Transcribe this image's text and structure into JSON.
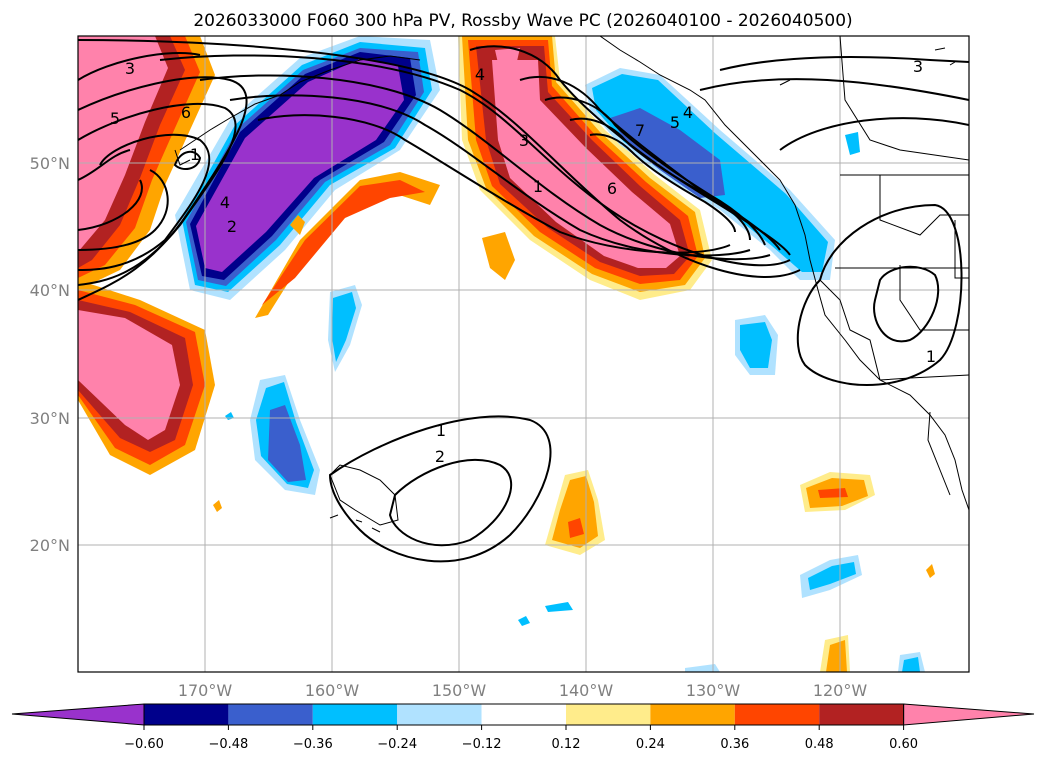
{
  "title": "2026033000 F060 300 hPa PV, Rossby Wave PC (2026040100 - 2026040500)",
  "lat_ticks": [
    "50°N",
    "40°N",
    "30°N",
    "20°N"
  ],
  "lon_ticks": [
    "170°W",
    "160°W",
    "150°W",
    "140°W",
    "130°W",
    "120°W"
  ],
  "colorbar": {
    "ticks": [
      "−0.60",
      "−0.48",
      "−0.36",
      "−0.24",
      "−0.12",
      "0.12",
      "0.24",
      "0.36",
      "0.48",
      "0.60"
    ],
    "colors": {
      "lt_060": "#9932cc",
      "n060_n048": "#00008b",
      "n048_n036": "#3a5fcd",
      "n036_n024": "#00bfff",
      "n024_n012": "#b0e2ff",
      "n012_p012": "#ffffff",
      "p012_p024": "#ffec8b",
      "p024_p036": "#ffa500",
      "p036_p048": "#ff4500",
      "p048_p060": "#b22222",
      "gt_060": "#ff82ab"
    }
  },
  "contour_labels": [
    "3",
    "5",
    "6",
    "1",
    "4",
    "2",
    "4",
    "3",
    "1",
    "6",
    "7",
    "5",
    "4",
    "3",
    "1",
    "2",
    "1"
  ],
  "map_colors": {
    "coast": "#000000",
    "grid": "#b0b0b0",
    "contour": "#000000"
  }
}
